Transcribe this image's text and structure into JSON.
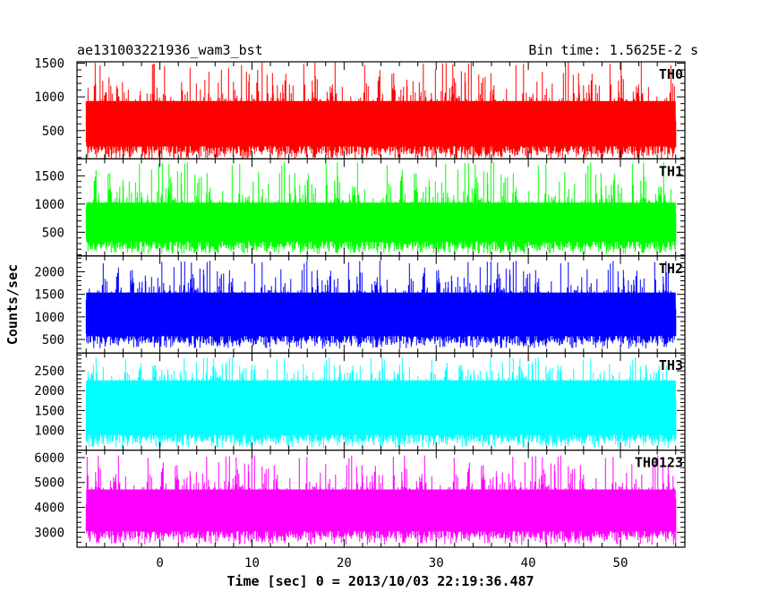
{
  "header": {
    "title": "ae131003221936_wam3_bst",
    "bin_time": "Bin time: 1.5625E-2 s"
  },
  "chart_data": {
    "type": "line",
    "title": "ae131003221936_wam3_bst",
    "subtitle": "Bin time: 1.5625E-2 s",
    "xlabel": "Time [sec] 0 = 2013/10/03 22:19:36.487",
    "ylabel": "Counts/sec",
    "xlim": [
      -9,
      57
    ],
    "x_data_range": [
      -8,
      56
    ],
    "xticks": [
      0,
      10,
      20,
      30,
      40,
      50
    ],
    "grid": false,
    "panels": [
      {
        "name": "TH0",
        "color": "#ff0000",
        "ylim": [
          80,
          1520
        ],
        "yticks": [
          500,
          1000,
          1500
        ],
        "baseline": 150,
        "lo": 80,
        "hi": 1520,
        "mean": 650
      },
      {
        "name": "TH1",
        "color": "#00ff00",
        "ylim": [
          80,
          1800
        ],
        "yticks": [
          500,
          1000,
          1500
        ],
        "baseline": 200,
        "lo": 120,
        "hi": 1750,
        "mean": 700
      },
      {
        "name": "TH2",
        "color": "#0000ff",
        "ylim": [
          200,
          2350
        ],
        "yticks": [
          500,
          1000,
          1500,
          2000
        ],
        "baseline": 420,
        "lo": 300,
        "hi": 2250,
        "mean": 1150
      },
      {
        "name": "TH3",
        "color": "#00ffff",
        "ylim": [
          500,
          2950
        ],
        "yticks": [
          1000,
          1500,
          2000,
          2500
        ],
        "baseline": 700,
        "lo": 550,
        "hi": 2850,
        "mean": 1800
      },
      {
        "name": "TH0123",
        "color": "#ff00ff",
        "ylim": [
          2400,
          6300
        ],
        "yticks": [
          3000,
          4000,
          5000,
          6000
        ],
        "baseline": 2750,
        "lo": 2500,
        "hi": 6100,
        "mean": 4000
      }
    ]
  }
}
